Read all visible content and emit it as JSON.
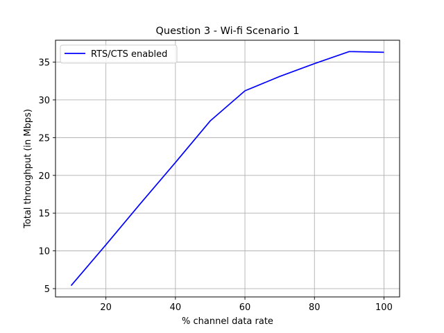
{
  "chart_data": {
    "type": "line",
    "title": "Question 3 - Wi-fi Scenario 1",
    "xlabel": "% channel data rate",
    "ylabel": "Total throughput (in Mbps)",
    "xlim": [
      5.5,
      104.5
    ],
    "ylim": [
      3.9,
      37.9
    ],
    "xticks": [
      20,
      40,
      60,
      80,
      100
    ],
    "yticks": [
      5,
      10,
      15,
      20,
      25,
      30,
      35
    ],
    "grid": true,
    "legend_position": "top-left",
    "series": [
      {
        "name": "RTS/CTS enabled",
        "color": "#0000ff",
        "x": [
          10,
          20,
          30,
          40,
          50,
          60,
          70,
          80,
          90,
          100
        ],
        "y": [
          5.4,
          10.8,
          16.3,
          21.7,
          27.2,
          31.2,
          33.1,
          34.8,
          36.4,
          36.3
        ]
      }
    ]
  }
}
